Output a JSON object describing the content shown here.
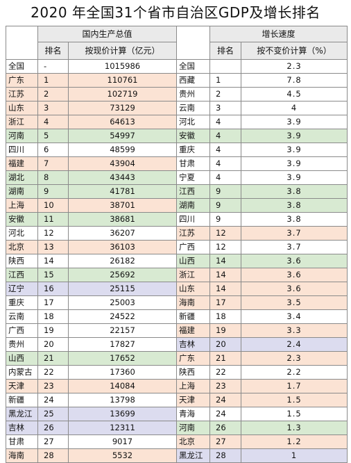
{
  "title": "2020 年全国31个省市自治区GDP及增长排名",
  "headers": {
    "left_group": "国内生产总值",
    "right_group": "增长速度",
    "rank": "排名",
    "gdp": "按现价计算（亿元）",
    "rank2": "排名",
    "rate": "按不变价计算（%）"
  },
  "rows": [
    {
      "lp": "全国",
      "lr": "-",
      "lv": "1015986",
      "lc": "white",
      "rp": "全国",
      "rr": "",
      "rv": "2.3",
      "rc": "white"
    },
    {
      "lp": "广东",
      "lr": "1",
      "lv": "110761",
      "lc": "orange",
      "rp": "西藏",
      "rr": "1",
      "rv": "7.8",
      "rc": "white"
    },
    {
      "lp": "江苏",
      "lr": "2",
      "lv": "102719",
      "lc": "orange",
      "rp": "贵州",
      "rr": "2",
      "rv": "4.5",
      "rc": "white"
    },
    {
      "lp": "山东",
      "lr": "3",
      "lv": "73129",
      "lc": "orange",
      "rp": "云南",
      "rr": "3",
      "rv": "4",
      "rc": "white"
    },
    {
      "lp": "浙江",
      "lr": "4",
      "lv": "64613",
      "lc": "orange",
      "rp": "河北",
      "rr": "4",
      "rv": "3.9",
      "rc": "white"
    },
    {
      "lp": "河南",
      "lr": "5",
      "lv": "54997",
      "lc": "green",
      "rp": "安徽",
      "rr": "4",
      "rv": "3.9",
      "rc": "green"
    },
    {
      "lp": "四川",
      "lr": "6",
      "lv": "48599",
      "lc": "white",
      "rp": "重庆",
      "rr": "4",
      "rv": "3.9",
      "rc": "white"
    },
    {
      "lp": "福建",
      "lr": "7",
      "lv": "43904",
      "lc": "orange",
      "rp": "甘肃",
      "rr": "4",
      "rv": "3.9",
      "rc": "white"
    },
    {
      "lp": "湖北",
      "lr": "8",
      "lv": "43443",
      "lc": "green",
      "rp": "宁夏",
      "rr": "4",
      "rv": "3.9",
      "rc": "white"
    },
    {
      "lp": "湖南",
      "lr": "9",
      "lv": "41781",
      "lc": "green",
      "rp": "江西",
      "rr": "9",
      "rv": "3.8",
      "rc": "green"
    },
    {
      "lp": "上海",
      "lr": "10",
      "lv": "38701",
      "lc": "orange",
      "rp": "湖南",
      "rr": "9",
      "rv": "3.8",
      "rc": "green"
    },
    {
      "lp": "安徽",
      "lr": "11",
      "lv": "38681",
      "lc": "green",
      "rp": "四川",
      "rr": "9",
      "rv": "3.8",
      "rc": "white"
    },
    {
      "lp": "河北",
      "lr": "12",
      "lv": "36207",
      "lc": "white",
      "rp": "江苏",
      "rr": "12",
      "rv": "3.7",
      "rc": "orange"
    },
    {
      "lp": "北京",
      "lr": "13",
      "lv": "36103",
      "lc": "orange",
      "rp": "广西",
      "rr": "12",
      "rv": "3.7",
      "rc": "white"
    },
    {
      "lp": "陕西",
      "lr": "14",
      "lv": "26182",
      "lc": "white",
      "rp": "山西",
      "rr": "14",
      "rv": "3.6",
      "rc": "green"
    },
    {
      "lp": "江西",
      "lr": "15",
      "lv": "25692",
      "lc": "green",
      "rp": "浙江",
      "rr": "14",
      "rv": "3.6",
      "rc": "orange"
    },
    {
      "lp": "辽宁",
      "lr": "16",
      "lv": "25115",
      "lc": "blue",
      "rp": "山东",
      "rr": "14",
      "rv": "3.6",
      "rc": "orange"
    },
    {
      "lp": "重庆",
      "lr": "17",
      "lv": "25003",
      "lc": "white",
      "rp": "海南",
      "rr": "17",
      "rv": "3.5",
      "rc": "orange"
    },
    {
      "lp": "云南",
      "lr": "18",
      "lv": "24522",
      "lc": "white",
      "rp": "新疆",
      "rr": "18",
      "rv": "3.4",
      "rc": "white"
    },
    {
      "lp": "广西",
      "lr": "19",
      "lv": "22157",
      "lc": "white",
      "rp": "福建",
      "rr": "19",
      "rv": "3.3",
      "rc": "orange"
    },
    {
      "lp": "贵州",
      "lr": "20",
      "lv": "17827",
      "lc": "white",
      "rp": "吉林",
      "rr": "20",
      "rv": "2.4",
      "rc": "blue"
    },
    {
      "lp": "山西",
      "lr": "21",
      "lv": "17652",
      "lc": "green",
      "rp": "广东",
      "rr": "21",
      "rv": "2.3",
      "rc": "orange"
    },
    {
      "lp": "内蒙古",
      "lr": "22",
      "lv": "17360",
      "lc": "white",
      "rp": "陕西",
      "rr": "22",
      "rv": "2.2",
      "rc": "white"
    },
    {
      "lp": "天津",
      "lr": "23",
      "lv": "14084",
      "lc": "orange",
      "rp": "上海",
      "rr": "23",
      "rv": "1.7",
      "rc": "orange"
    },
    {
      "lp": "新疆",
      "lr": "24",
      "lv": "13798",
      "lc": "white",
      "rp": "天津",
      "rr": "24",
      "rv": "1.5",
      "rc": "orange"
    },
    {
      "lp": "黑龙江",
      "lr": "25",
      "lv": "13699",
      "lc": "blue",
      "rp": "青海",
      "rr": "24",
      "rv": "1.5",
      "rc": "white"
    },
    {
      "lp": "吉林",
      "lr": "26",
      "lv": "12311",
      "lc": "blue",
      "rp": "河南",
      "rr": "26",
      "rv": "1.3",
      "rc": "green"
    },
    {
      "lp": "甘肃",
      "lr": "27",
      "lv": "9017",
      "lc": "white",
      "rp": "北京",
      "rr": "27",
      "rv": "1.2",
      "rc": "orange"
    },
    {
      "lp": "海南",
      "lr": "28",
      "lv": "5532",
      "lc": "orange",
      "rp": "黑龙江",
      "rr": "28",
      "rv": "1",
      "rc": "blue"
    }
  ]
}
